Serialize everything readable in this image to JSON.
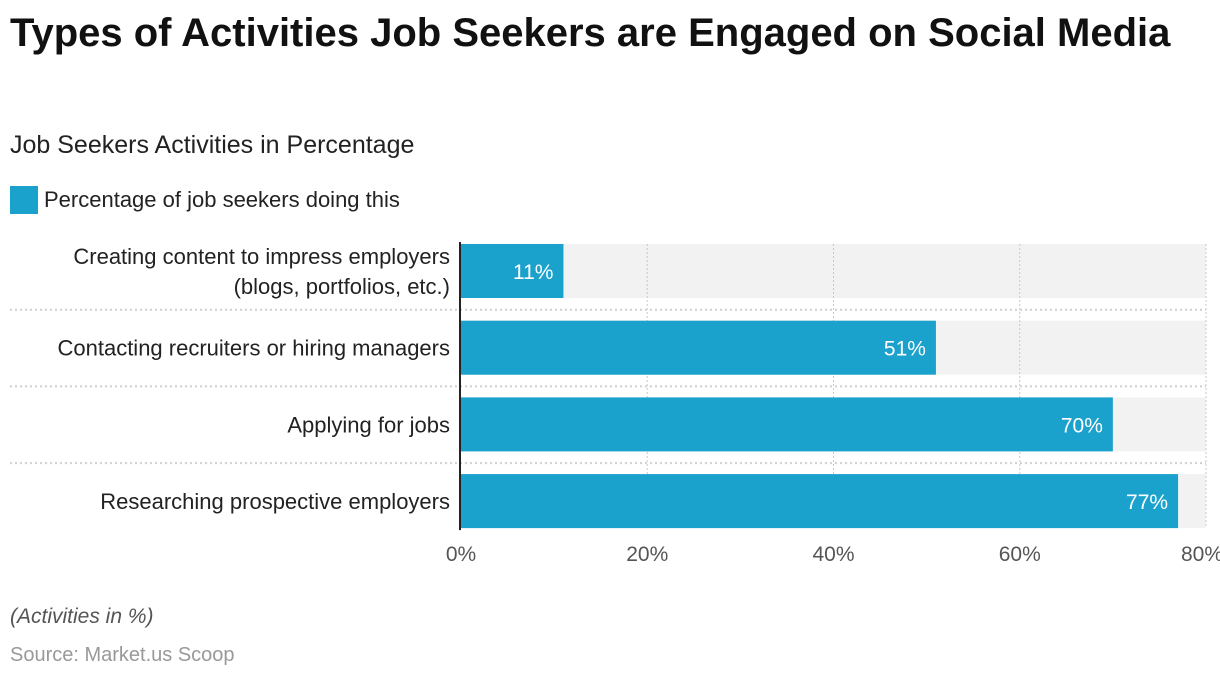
{
  "chart_data": {
    "type": "bar",
    "orientation": "horizontal",
    "title": "Types of Activities Job Seekers are Engaged on Social Media",
    "subtitle": "Job Seekers Activities in Percentage",
    "categories": [
      [
        "Creating content to impress employers",
        "(blogs, portfolios, etc.)"
      ],
      [
        "Contacting recruiters or hiring managers"
      ],
      [
        "Applying for jobs"
      ],
      [
        "Researching prospective employers"
      ]
    ],
    "series": [
      {
        "name": "Percentage of job seekers doing this",
        "values": [
          11,
          51,
          70,
          77
        ],
        "color": "#1aa1cc"
      }
    ],
    "data_labels": [
      "11%",
      "51%",
      "70%",
      "77%"
    ],
    "xlim": [
      0,
      80
    ],
    "x_ticks": [
      0,
      20,
      40,
      60,
      80
    ],
    "x_tick_labels": [
      "0%",
      "20%",
      "40%",
      "60%",
      "80%"
    ],
    "grid": true,
    "legend": "top-left",
    "background_bar_color": "#f2f2f2"
  },
  "footer": {
    "note": "(Activities in %)",
    "source": "Source: Market.us Scoop"
  }
}
